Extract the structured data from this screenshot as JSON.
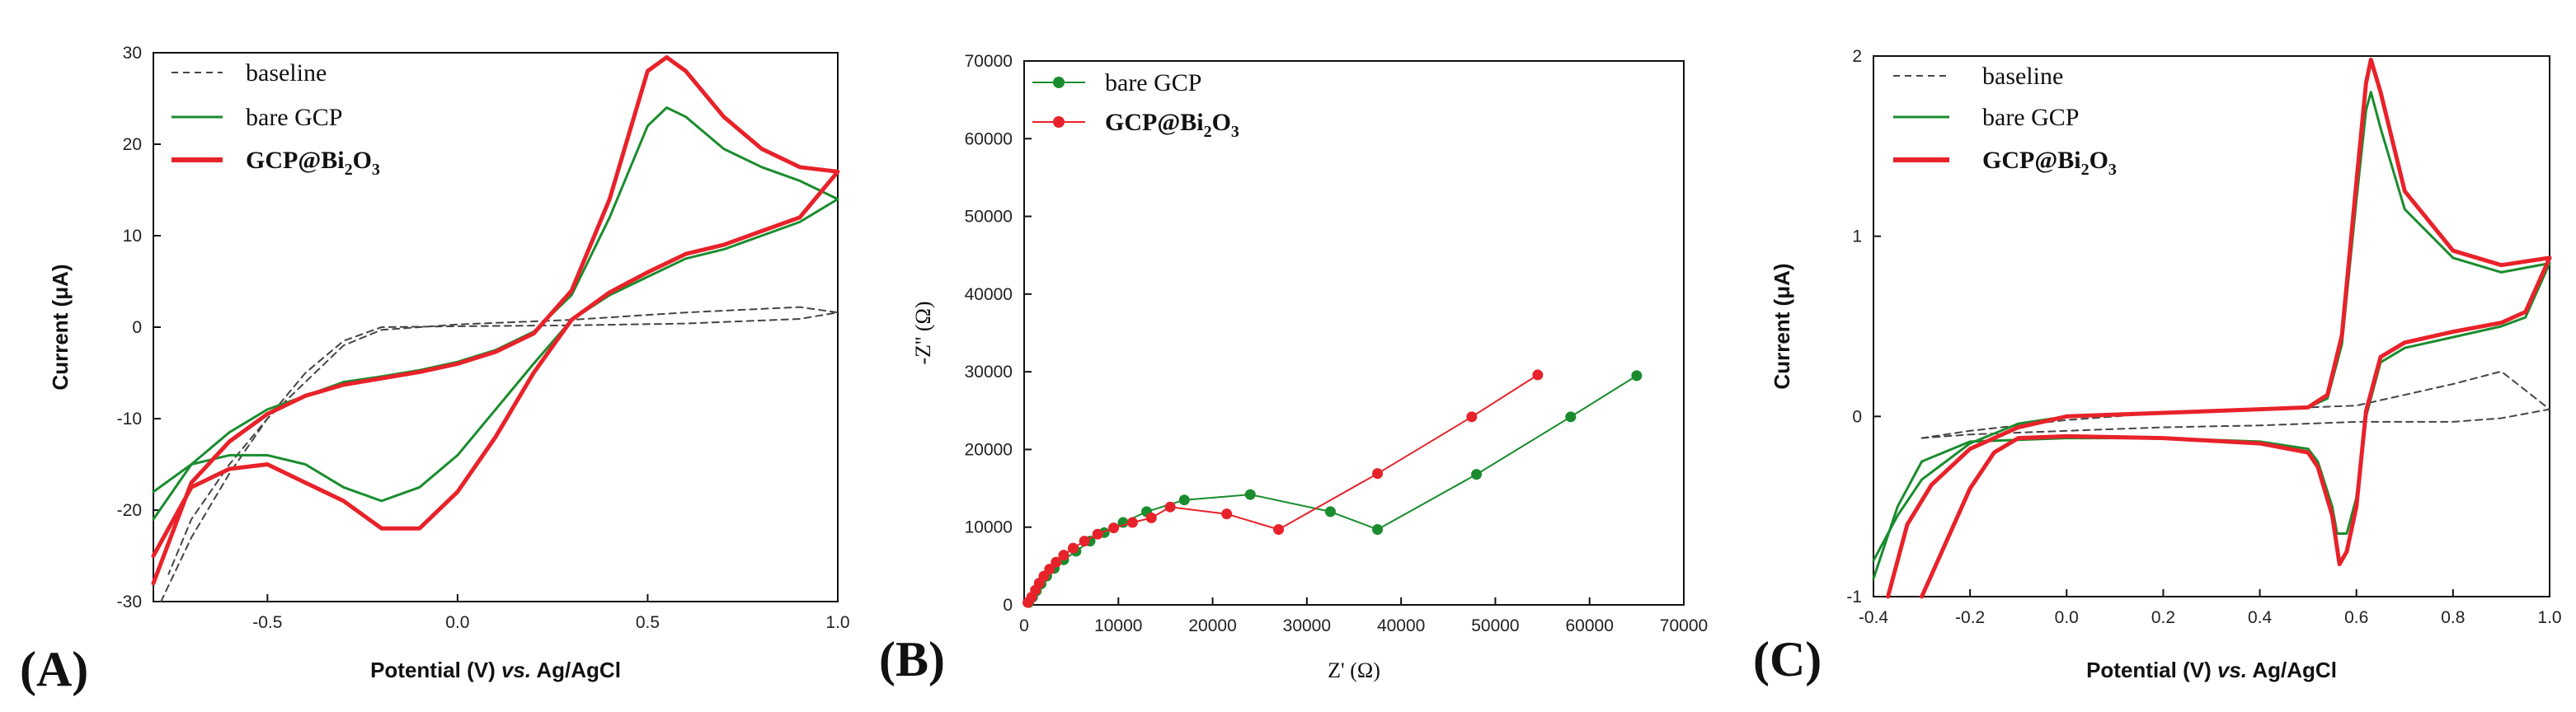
{
  "colors": {
    "green": "#1a8c2e",
    "red": "#e8222a",
    "baseline": "#444444"
  },
  "chart_data": [
    {
      "panel": "(A)",
      "type": "line",
      "xlabel_pre": "Potential (V) ",
      "xlabel_it": "vs.",
      "xlabel_post": " Ag/AgCl",
      "ylabel": "Current (μA)",
      "xlim": [
        -0.8,
        1.0
      ],
      "ylim": [
        -30,
        30
      ],
      "xticks": [
        -0.5,
        0.0,
        0.5,
        1.0
      ],
      "xtick_labels": [
        "-0.5",
        "0.0",
        "0.5",
        "1.0"
      ],
      "yticks": [
        -30,
        -20,
        -10,
        0,
        10,
        20,
        30
      ],
      "ytick_labels": [
        "-30",
        "-20",
        "-10",
        "0",
        "10",
        "20",
        "30"
      ],
      "legend": {
        "baseline": "baseline",
        "bare": "bare GCP",
        "mod_pre": "GCP@Bi",
        "mod_sub1": "2",
        "mod_mid": "O",
        "mod_sub2": "3"
      },
      "series": [
        {
          "name": "baseline",
          "style": "dashed",
          "color": "#444444",
          "x": [
            -0.78,
            -0.7,
            -0.6,
            -0.5,
            -0.4,
            -0.3,
            -0.2,
            0.0,
            0.3,
            0.6,
            0.9,
            1.0,
            0.9,
            0.6,
            0.3,
            0.0,
            -0.2,
            -0.3,
            -0.4,
            -0.5,
            -0.6,
            -0.7,
            -0.76
          ],
          "y": [
            -30,
            -23,
            -16,
            -10,
            -5,
            -1.5,
            0,
            0.1,
            0.2,
            0.4,
            0.9,
            1.6,
            2.2,
            1.6,
            0.8,
            0.3,
            -0.3,
            -2,
            -6,
            -10,
            -15,
            -21,
            -27
          ]
        },
        {
          "name": "bare GCP",
          "style": "solid",
          "color": "#1a8c2e",
          "x": [
            -0.8,
            -0.7,
            -0.6,
            -0.5,
            -0.4,
            -0.3,
            -0.2,
            -0.1,
            0.0,
            0.1,
            0.2,
            0.3,
            0.4,
            0.5,
            0.55,
            0.6,
            0.7,
            0.8,
            0.9,
            1.0,
            0.9,
            0.8,
            0.7,
            0.6,
            0.5,
            0.4,
            0.3,
            0.2,
            0.1,
            0.0,
            -0.1,
            -0.2,
            -0.3,
            -0.4,
            -0.5,
            -0.6,
            -0.7,
            -0.8
          ],
          "y": [
            -21,
            -15,
            -11.5,
            -9,
            -7.5,
            -6,
            -5.4,
            -4.7,
            -3.8,
            -2.5,
            -0.5,
            3.5,
            12,
            22,
            24,
            23,
            19.5,
            17.5,
            16,
            14,
            11.5,
            10,
            8.5,
            7.5,
            5.5,
            3.5,
            0.8,
            -4,
            -9,
            -14,
            -17.5,
            -19,
            -17.5,
            -15,
            -14,
            -14,
            -15,
            -18
          ]
        },
        {
          "name": "GCP@Bi2O3",
          "style": "solid",
          "color": "#e8222a",
          "x": [
            -0.8,
            -0.7,
            -0.6,
            -0.5,
            -0.4,
            -0.3,
            -0.2,
            -0.1,
            0.0,
            0.1,
            0.2,
            0.3,
            0.4,
            0.5,
            0.55,
            0.6,
            0.7,
            0.8,
            0.9,
            1.0,
            0.9,
            0.8,
            0.7,
            0.6,
            0.5,
            0.4,
            0.3,
            0.2,
            0.1,
            0.0,
            -0.1,
            -0.2,
            -0.3,
            -0.4,
            -0.5,
            -0.6,
            -0.7,
            -0.8
          ],
          "y": [
            -28,
            -17,
            -12.5,
            -9.5,
            -7.5,
            -6.3,
            -5.6,
            -4.9,
            -4,
            -2.7,
            -0.7,
            4,
            14,
            28,
            29.5,
            28,
            23,
            19.5,
            17.5,
            17,
            12,
            10.5,
            9,
            8,
            6,
            3.8,
            0.8,
            -5,
            -12,
            -18,
            -22,
            -22,
            -19,
            -17,
            -15,
            -15.5,
            -17.5,
            -25
          ]
        }
      ]
    },
    {
      "panel": "(B)",
      "type": "line",
      "xlabel": "Z' (Ω)",
      "ylabel": "-Z'' (Ω)",
      "xlim": [
        0,
        70000
      ],
      "ylim": [
        0,
        70000
      ],
      "xticks": [
        0,
        10000,
        20000,
        30000,
        40000,
        50000,
        60000,
        70000
      ],
      "xtick_labels": [
        "0",
        "10000",
        "20000",
        "30000",
        "40000",
        "50000",
        "60000",
        "70000"
      ],
      "yticks": [
        0,
        10000,
        20000,
        30000,
        40000,
        50000,
        60000,
        70000
      ],
      "ytick_labels": [
        "0",
        "10000",
        "20000",
        "30000",
        "40000",
        "50000",
        "60000",
        "70000"
      ],
      "legend": {
        "bare": "bare GCP",
        "mod_pre": "GCP@Bi",
        "mod_sub1": "2",
        "mod_mid": "O",
        "mod_sub2": "3"
      },
      "series": [
        {
          "name": "bare GCP",
          "color": "#1a8c2e",
          "x": [
            500,
            900,
            1300,
            1800,
            2400,
            3200,
            4200,
            5500,
            7000,
            8500,
            10500,
            13000,
            17000,
            24000,
            32500,
            37500,
            48000,
            58000,
            65000
          ],
          "y": [
            300,
            1000,
            1800,
            2700,
            3700,
            4700,
            5800,
            6900,
            8200,
            9300,
            10600,
            12000,
            13500,
            14200,
            12000,
            9700,
            16800,
            24200,
            29500
          ]
        },
        {
          "name": "GCP@Bi2O3",
          "color": "#e8222a",
          "x": [
            400,
            800,
            1200,
            1600,
            2100,
            2700,
            3400,
            4200,
            5200,
            6400,
            7800,
            9500,
            11500,
            13500,
            15500,
            21500,
            27000,
            37500,
            47500,
            54500
          ],
          "y": [
            300,
            1000,
            1900,
            2800,
            3700,
            4600,
            5500,
            6400,
            7300,
            8200,
            9100,
            9900,
            10600,
            11200,
            12600,
            11700,
            9700,
            16900,
            24200,
            29600
          ]
        }
      ]
    },
    {
      "panel": "(C)",
      "type": "line",
      "xlabel_pre": "Potential (V) ",
      "xlabel_it": "vs.",
      "xlabel_post": " Ag/AgCl",
      "ylabel": "Current (μA)",
      "xlim": [
        -0.4,
        1.0
      ],
      "ylim": [
        -1,
        2
      ],
      "xticks": [
        -0.4,
        -0.2,
        0.0,
        0.2,
        0.4,
        0.6,
        0.8,
        1.0
      ],
      "xtick_labels": [
        "-0.4",
        "-0.2",
        "0.0",
        "0.2",
        "0.4",
        "0.6",
        "0.8",
        "1.0"
      ],
      "yticks": [
        -1,
        0,
        1,
        2
      ],
      "ytick_labels": [
        "-1",
        "0",
        "1",
        "2"
      ],
      "legend": {
        "baseline": "baseline",
        "bare": "bare GCP",
        "mod_pre": "GCP@Bi",
        "mod_sub1": "2",
        "mod_mid": "O",
        "mod_sub2": "3"
      },
      "series": [
        {
          "name": "baseline",
          "style": "dashed",
          "color": "#444444",
          "x": [
            -0.3,
            -0.2,
            0.0,
            0.2,
            0.4,
            0.6,
            0.7,
            0.8,
            0.9,
            1.0,
            0.9,
            0.8,
            0.6,
            0.4,
            0.2,
            0.0,
            -0.2,
            -0.3
          ],
          "y": [
            -0.12,
            -0.1,
            -0.08,
            -0.06,
            -0.05,
            -0.03,
            -0.03,
            -0.03,
            -0.01,
            0.04,
            0.25,
            0.18,
            0.06,
            0.04,
            0.02,
            -0.02,
            -0.08,
            -0.12
          ]
        },
        {
          "name": "bare GCP",
          "style": "solid",
          "color": "#1a8c2e",
          "x": [
            -0.4,
            -0.35,
            -0.3,
            -0.2,
            -0.1,
            0.0,
            0.2,
            0.4,
            0.5,
            0.54,
            0.57,
            0.6,
            0.62,
            0.63,
            0.65,
            0.7,
            0.8,
            0.9,
            1.0,
            0.95,
            0.9,
            0.8,
            0.7,
            0.65,
            0.62,
            0.6,
            0.58,
            0.56,
            0.55,
            0.52,
            0.5,
            0.4,
            0.2,
            0.0,
            -0.1,
            -0.2,
            -0.3,
            -0.35,
            -0.4
          ],
          "y": [
            -0.8,
            -0.55,
            -0.35,
            -0.15,
            -0.04,
            0.0,
            0.02,
            0.04,
            0.05,
            0.1,
            0.4,
            1.2,
            1.7,
            1.8,
            1.6,
            1.15,
            0.88,
            0.8,
            0.85,
            0.55,
            0.5,
            0.44,
            0.38,
            0.3,
            0.0,
            -0.45,
            -0.65,
            -0.65,
            -0.5,
            -0.25,
            -0.18,
            -0.14,
            -0.12,
            -0.12,
            -0.13,
            -0.14,
            -0.25,
            -0.5,
            -0.9
          ]
        },
        {
          "name": "GCP@Bi2O3",
          "style": "solid",
          "color": "#e8222a",
          "x": [
            -0.37,
            -0.33,
            -0.28,
            -0.2,
            -0.1,
            0.0,
            0.2,
            0.4,
            0.5,
            0.54,
            0.57,
            0.6,
            0.62,
            0.63,
            0.65,
            0.7,
            0.8,
            0.9,
            1.0,
            0.95,
            0.9,
            0.8,
            0.7,
            0.65,
            0.62,
            0.6,
            0.58,
            0.565,
            0.55,
            0.52,
            0.5,
            0.4,
            0.2,
            0.0,
            -0.1,
            -0.15,
            -0.2,
            -0.25,
            -0.3
          ],
          "y": [
            -1.0,
            -0.6,
            -0.38,
            -0.18,
            -0.06,
            0.0,
            0.02,
            0.04,
            0.05,
            0.12,
            0.45,
            1.3,
            1.85,
            1.98,
            1.8,
            1.25,
            0.92,
            0.84,
            0.88,
            0.58,
            0.52,
            0.47,
            0.41,
            0.33,
            0.03,
            -0.5,
            -0.75,
            -0.82,
            -0.55,
            -0.28,
            -0.2,
            -0.15,
            -0.12,
            -0.11,
            -0.12,
            -0.2,
            -0.4,
            -0.7,
            -1.0
          ]
        }
      ]
    }
  ]
}
